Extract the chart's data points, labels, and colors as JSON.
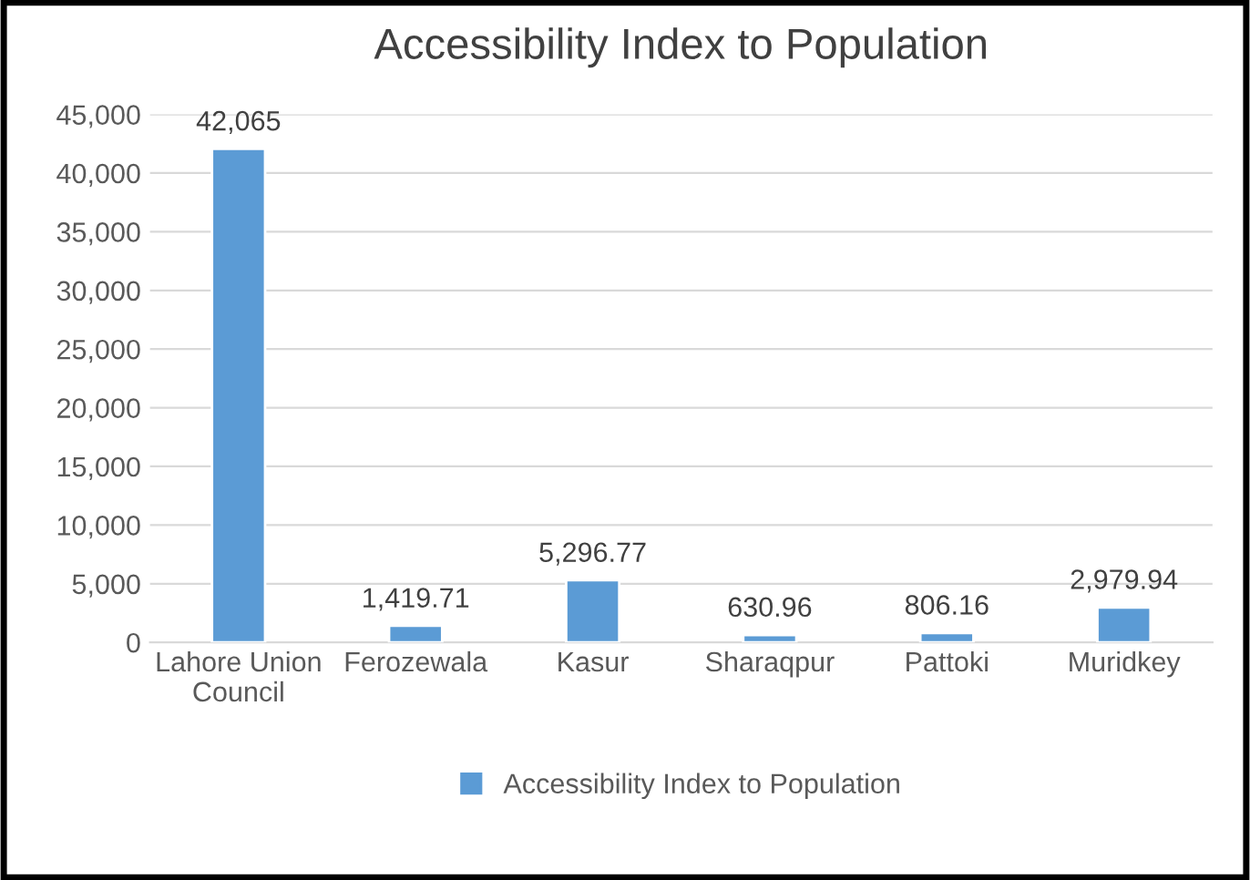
{
  "chart_data": {
    "type": "bar",
    "title": "Accessibility Index to Population",
    "categories": [
      "Lahore Union Council",
      "Ferozewala",
      "Kasur",
      "Sharaqpur",
      "Pattoki",
      "Muridkey"
    ],
    "series": [
      {
        "name": "Accessibility Index to Population",
        "color": "#5b9bd5",
        "values": [
          42065,
          1419.71,
          5296.77,
          630.96,
          806.16,
          2979.94
        ],
        "value_labels": [
          "42,065",
          "1,419.71",
          "5,296.77",
          "630.96",
          "806.16",
          "2,979.94"
        ]
      }
    ],
    "ylim": [
      0,
      45000
    ],
    "yticks": [
      {
        "value": 0,
        "label": "0"
      },
      {
        "value": 5000,
        "label": "5,000"
      },
      {
        "value": 10000,
        "label": "10,000"
      },
      {
        "value": 15000,
        "label": "15,000"
      },
      {
        "value": 20000,
        "label": "20,000"
      },
      {
        "value": 25000,
        "label": "25,000"
      },
      {
        "value": 30000,
        "label": "30,000"
      },
      {
        "value": 35000,
        "label": "35,000"
      },
      {
        "value": 40000,
        "label": "40,000"
      },
      {
        "value": 45000,
        "label": "45,000"
      }
    ],
    "grid": "y",
    "legend": "bottom"
  }
}
